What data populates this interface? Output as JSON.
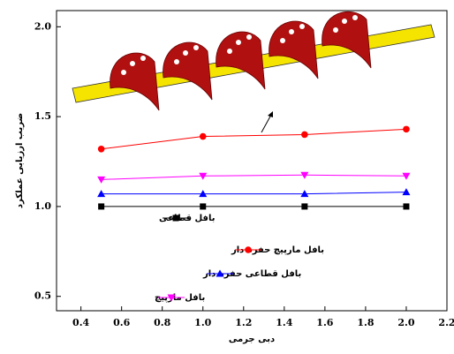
{
  "chart_data": {
    "type": "line",
    "x_label": "دبی جرمی",
    "y_label": "ضریب ارزیابی عملکرد",
    "xlim": [
      0.28,
      2.2
    ],
    "ylim": [
      0.42,
      2.09
    ],
    "xticks": [
      0.4,
      0.6,
      0.8,
      {
        "value": 1,
        "label": "1.0"
      },
      1.2,
      1.4,
      1.6,
      1.8,
      {
        "value": 2,
        "label": "2.0"
      },
      2.2
    ],
    "yticks": [
      0.5,
      {
        "value": 1,
        "label": "1.0"
      },
      1.5,
      {
        "value": 2,
        "label": "2.0"
      }
    ],
    "x": [
      0.5,
      1.0,
      1.5,
      2.0
    ],
    "series": [
      {
        "name": "بافل قطاعی",
        "color": "#000000",
        "marker": "square",
        "values": [
          1.0,
          1.0,
          1.0,
          1.0
        ]
      },
      {
        "name": "بافل مارپیچ حفره دار",
        "color": "#ff0000",
        "marker": "circle",
        "values": [
          1.32,
          1.39,
          1.4,
          1.43
        ]
      },
      {
        "name": "بافل قطاعی حفره دار",
        "color": "#0000ff",
        "marker": "triangle-up",
        "values": [
          1.07,
          1.07,
          1.07,
          1.08
        ]
      },
      {
        "name": "بافل مارپیچ",
        "color": "#ff00ff",
        "marker": "triangle-down",
        "values": [
          1.15,
          1.17,
          1.175,
          1.17
        ]
      }
    ]
  }
}
